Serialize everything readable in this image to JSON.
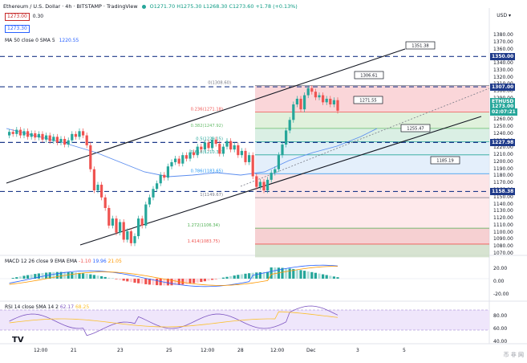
{
  "title": "Ethereum / U.S. Dollar · 4h · BITSTAMP · TradingView",
  "ohlc": {
    "o": "O1271.70",
    "h": "H1275.30",
    "l": "L1268.30",
    "c": "C1273.60",
    "chg": "+1.78 (+0.13%)"
  },
  "sell_box": "1273.00",
  "spread": "0.30",
  "buy_box": "1273.30",
  "ma_label": "MA 50 close 0 SMA 5",
  "ma_value": "1220.55",
  "currency": "USD",
  "price_axis": [
    "1380.00",
    "1370.00",
    "1360.00",
    "1350.00",
    "1340.00",
    "1330.00",
    "1320.00",
    "1310.00",
    "1300.00",
    "1290.00",
    "1280.00",
    "1270.00",
    "1260.00",
    "1250.00",
    "1240.00",
    "1230.00",
    "1220.00",
    "1210.00",
    "1200.00",
    "1190.00",
    "1180.00",
    "1170.00",
    "1160.00",
    "1150.00",
    "1140.00",
    "1130.00",
    "1120.00",
    "1110.00",
    "1100.00",
    "1090.00",
    "1080.00",
    "1070.00"
  ],
  "price_tags": [
    {
      "label": "1350.00",
      "color": "#1e3a8a"
    },
    {
      "label": "1307.00",
      "color": "#1e3a8a"
    },
    {
      "label": "ETHUSD",
      "color": "#26a69a"
    },
    {
      "label": "1273.00",
      "color": "#26a69a"
    },
    {
      "label": "02:07:21",
      "color": "#26a69a"
    },
    {
      "label": "1227.98",
      "color": "#1e3a8a"
    },
    {
      "label": "1158.38",
      "color": "#1e3a8a"
    }
  ],
  "callouts": [
    "1351.38",
    "1306.61",
    "1271.55",
    "1255.47",
    "1185.19"
  ],
  "fib_levels": [
    {
      "label": "0(1308.60)"
    },
    {
      "label": "0.236(1271.18)"
    },
    {
      "label": "0.382(1247.92)"
    },
    {
      "label": "0.5(1229.15)"
    },
    {
      "label": "0.618(1210.37)"
    },
    {
      "label": "0.786(1183.65)"
    },
    {
      "label": "1(1149.67)"
    },
    {
      "label": "1.272(1106.34)"
    },
    {
      "label": "1.414(1083.75)"
    }
  ],
  "x_axis": [
    "12:00",
    "21",
    "23",
    "25",
    "12:00",
    "28",
    "12:00",
    "Dec",
    "3",
    "5"
  ],
  "macd": {
    "title": "MACD 12 26 close 9 EMA EMA",
    "v1": "-1.10",
    "v2": "19.96",
    "v3": "21.05",
    "axis": [
      "20.00",
      "0.00",
      "-20.00"
    ]
  },
  "rsi": {
    "title": "RSI 14 close SMA 14 2",
    "v1": "62.17",
    "v2": "68.25",
    "axis": [
      "80.00",
      "60.00",
      "40.00"
    ]
  },
  "logo": "TV",
  "watermark": "币 非 网"
}
